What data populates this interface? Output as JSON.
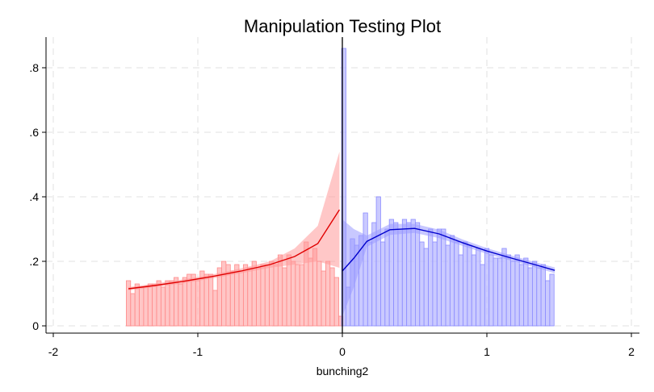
{
  "chart_data": {
    "type": "bar",
    "title": "Manipulation Testing Plot",
    "xlabel": "bunching2",
    "ylabel": "",
    "xlim": [
      -2.05,
      2.05
    ],
    "ylim": [
      -0.02,
      0.89
    ],
    "xticks": [
      -2,
      -1,
      0,
      1,
      2
    ],
    "xtick_labels": [
      "-2",
      "-1",
      "0",
      "1",
      "2"
    ],
    "yticks": [
      0,
      0.2,
      0.4,
      0.6,
      0.8
    ],
    "ytick_labels": [
      "0",
      ".2",
      ".4",
      ".6",
      ".8"
    ],
    "grid": true,
    "cutoff": 0,
    "bin_width": 0.03,
    "colors": {
      "left_bar": "#ffb3b3",
      "left_bar_edge": "#ff8a8a",
      "left_line": "#e00000",
      "left_band": "#ff9999",
      "right_bar": "#b8b8ff",
      "right_bar_edge": "#8c8cff",
      "right_line": "#0000cc",
      "right_band": "#9a9aff",
      "cutoff_line": "#000000",
      "grid": "#e6e6e6"
    },
    "histogram_left": {
      "x": [
        -1.48,
        -1.45,
        -1.42,
        -1.39,
        -1.36,
        -1.33,
        -1.3,
        -1.27,
        -1.24,
        -1.21,
        -1.18,
        -1.15,
        -1.12,
        -1.09,
        -1.06,
        -1.03,
        -1.0,
        -0.97,
        -0.94,
        -0.91,
        -0.88,
        -0.85,
        -0.82,
        -0.79,
        -0.76,
        -0.73,
        -0.7,
        -0.67,
        -0.64,
        -0.61,
        -0.58,
        -0.55,
        -0.52,
        -0.49,
        -0.46,
        -0.43,
        -0.4,
        -0.37,
        -0.34,
        -0.31,
        -0.28,
        -0.25,
        -0.22,
        -0.19,
        -0.16,
        -0.13,
        -0.1,
        -0.07,
        -0.04,
        -0.01
      ],
      "y": [
        0.14,
        0.1,
        0.13,
        0.12,
        0.12,
        0.13,
        0.13,
        0.14,
        0.12,
        0.14,
        0.14,
        0.15,
        0.13,
        0.15,
        0.16,
        0.16,
        0.14,
        0.17,
        0.16,
        0.16,
        0.11,
        0.18,
        0.2,
        0.19,
        0.17,
        0.19,
        0.17,
        0.19,
        0.18,
        0.2,
        0.18,
        0.19,
        0.19,
        0.2,
        0.19,
        0.22,
        0.18,
        0.22,
        0.2,
        0.19,
        0.19,
        0.26,
        0.21,
        0.24,
        0.2,
        0.17,
        0.2,
        0.18,
        0.15,
        0.03
      ]
    },
    "histogram_right": {
      "x": [
        0.01,
        0.04,
        0.07,
        0.1,
        0.13,
        0.16,
        0.19,
        0.22,
        0.25,
        0.28,
        0.31,
        0.34,
        0.37,
        0.4,
        0.43,
        0.46,
        0.49,
        0.52,
        0.55,
        0.58,
        0.61,
        0.64,
        0.67,
        0.7,
        0.73,
        0.76,
        0.79,
        0.82,
        0.85,
        0.88,
        0.91,
        0.94,
        0.97,
        1.0,
        1.03,
        1.06,
        1.09,
        1.12,
        1.15,
        1.18,
        1.21,
        1.24,
        1.27,
        1.3,
        1.33,
        1.36,
        1.39,
        1.42,
        1.45
      ],
      "y": [
        0.86,
        0.12,
        0.27,
        0.25,
        0.28,
        0.35,
        0.26,
        0.32,
        0.4,
        0.26,
        0.3,
        0.33,
        0.32,
        0.3,
        0.33,
        0.32,
        0.33,
        0.32,
        0.26,
        0.24,
        0.3,
        0.26,
        0.3,
        0.3,
        0.25,
        0.28,
        0.26,
        0.22,
        0.26,
        0.25,
        0.22,
        0.24,
        0.19,
        0.24,
        0.22,
        0.21,
        0.21,
        0.24,
        0.22,
        0.2,
        0.22,
        0.19,
        0.21,
        0.18,
        0.2,
        0.18,
        0.19,
        0.14,
        0.16
      ]
    },
    "fit_left": {
      "x": [
        -1.48,
        -1.3,
        -1.1,
        -0.9,
        -0.7,
        -0.5,
        -0.33,
        -0.17,
        -0.02
      ],
      "y": [
        0.115,
        0.125,
        0.138,
        0.153,
        0.17,
        0.19,
        0.215,
        0.255,
        0.36
      ],
      "ci_low": [
        0.11,
        0.12,
        0.132,
        0.147,
        0.163,
        0.18,
        0.19,
        0.2,
        0.18
      ],
      "ci_high": [
        0.12,
        0.131,
        0.144,
        0.159,
        0.178,
        0.2,
        0.24,
        0.31,
        0.54
      ]
    },
    "fit_right": {
      "x": [
        0.0,
        0.08,
        0.17,
        0.33,
        0.5,
        0.67,
        0.83,
        1.0,
        1.17,
        1.33,
        1.47
      ],
      "y": [
        0.17,
        0.21,
        0.262,
        0.298,
        0.302,
        0.285,
        0.258,
        0.232,
        0.21,
        0.19,
        0.172
      ],
      "ci_low": [
        0.03,
        0.12,
        0.245,
        0.282,
        0.288,
        0.272,
        0.248,
        0.223,
        0.202,
        0.182,
        0.163
      ],
      "ci_high": [
        0.33,
        0.3,
        0.28,
        0.316,
        0.316,
        0.298,
        0.268,
        0.241,
        0.218,
        0.198,
        0.181
      ]
    }
  }
}
